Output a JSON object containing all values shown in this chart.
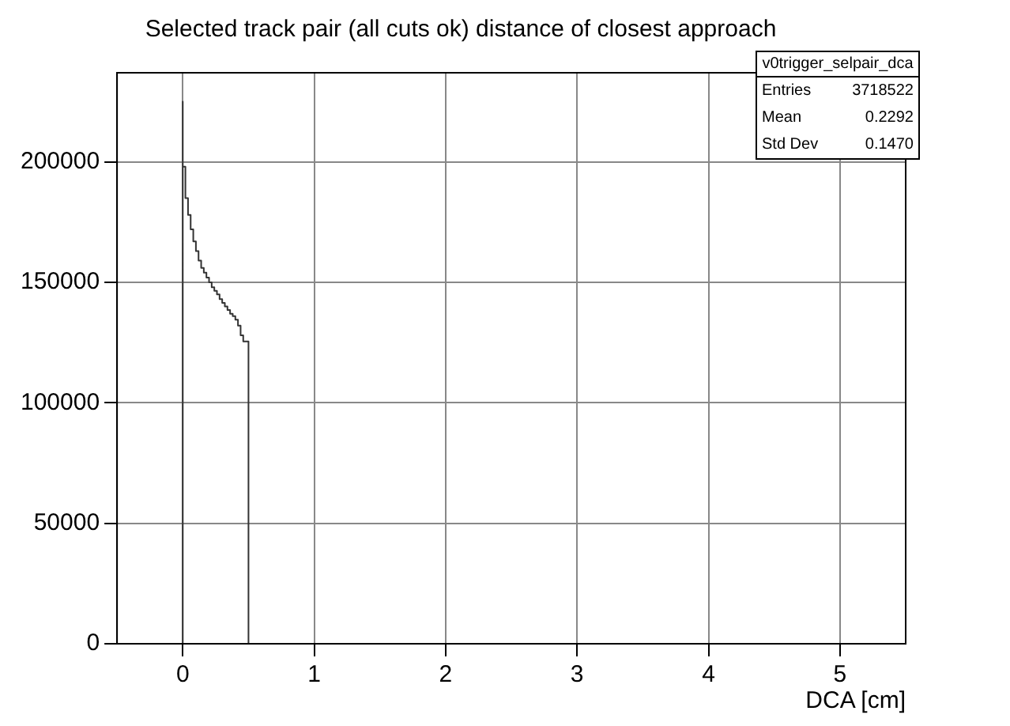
{
  "chart_data": {
    "type": "histogram",
    "title": "Selected track pair (all cuts ok) distance of closest approach",
    "xlabel": "DCA [cm]",
    "bins": [
      0,
      0.02,
      0.04,
      0.06,
      0.08,
      0.1,
      0.12,
      0.14,
      0.16,
      0.18,
      0.2,
      0.22,
      0.24,
      0.26,
      0.28,
      0.3,
      0.32,
      0.34,
      0.36,
      0.38,
      0.4,
      0.42,
      0.44,
      0.46,
      0.48,
      0.5
    ],
    "values": [
      225000,
      198000,
      185000,
      178000,
      172000,
      167000,
      163000,
      159000,
      156000,
      154000,
      152000,
      150000,
      148000,
      146500,
      145000,
      143000,
      141500,
      140000,
      138500,
      137000,
      136000,
      134500,
      132000,
      128000,
      125500
    ],
    "color": "#333333",
    "xlim": [
      -0.5,
      5.5
    ],
    "xticks": [
      0,
      1,
      2,
      3,
      4,
      5
    ],
    "ylim": [
      0,
      237000
    ],
    "yticks": [
      0,
      50000,
      100000,
      150000,
      200000
    ],
    "grid": true,
    "annotations": [
      "v0trigger_selpair_dca",
      "Entries",
      "3718522",
      "Mean",
      "0.2292",
      "Std Dev",
      "0.1470"
    ]
  }
}
